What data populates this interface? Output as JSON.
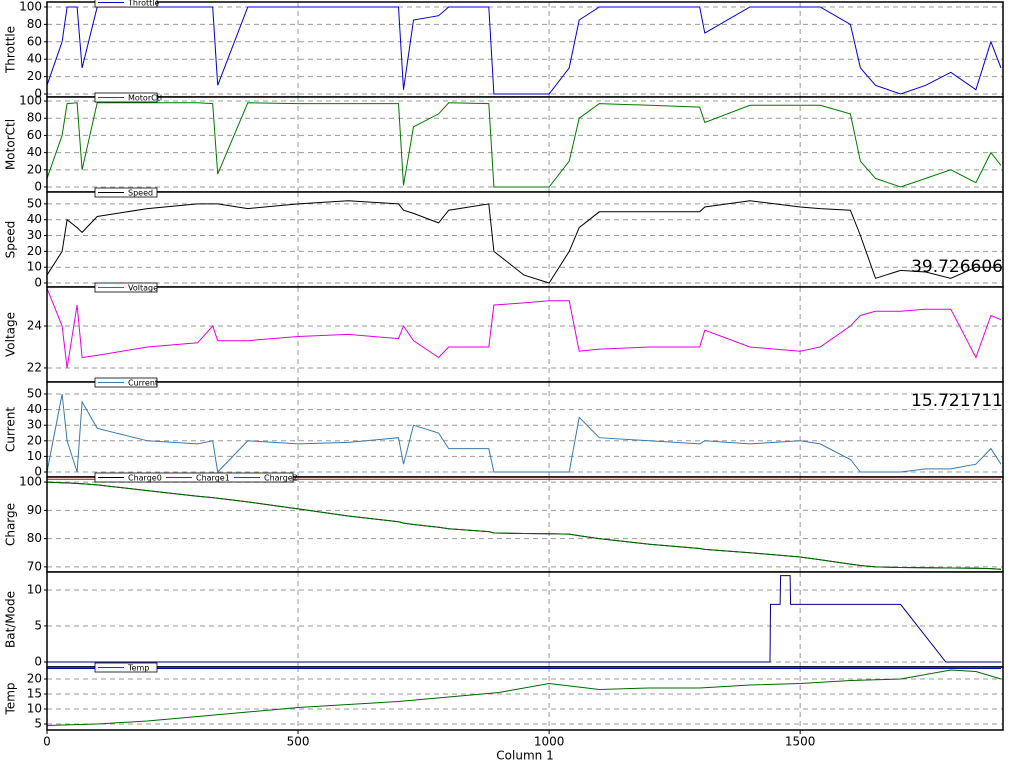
{
  "chart_data": [
    {
      "type": "line",
      "ylabel": "Throttle",
      "xlim": [
        0,
        1904
      ],
      "ylim": [
        -3.4,
        105.7
      ],
      "yticks": [
        0,
        20,
        40,
        60,
        80,
        100
      ],
      "grid": true,
      "x": [
        0,
        30,
        40,
        60,
        70,
        100,
        200,
        300,
        330,
        340,
        400,
        500,
        600,
        700,
        710,
        730,
        780,
        800,
        880,
        890,
        950,
        1000,
        1040,
        1060,
        1100,
        1200,
        1300,
        1310,
        1400,
        1500,
        1540,
        1600,
        1620,
        1650,
        1700,
        1750,
        1800,
        1850,
        1880,
        1900
      ],
      "series": [
        {
          "name": "Throttle",
          "color": "#0000cc",
          "values": [
            10,
            60,
            100,
            100,
            30,
            100,
            100,
            100,
            100,
            10,
            100,
            100,
            100,
            100,
            5,
            85,
            90,
            100,
            100,
            0,
            0,
            0,
            30,
            85,
            100,
            100,
            100,
            70,
            100,
            100,
            100,
            80,
            30,
            10,
            0,
            10,
            25,
            5,
            60,
            30
          ]
        }
      ]
    },
    {
      "type": "line",
      "ylabel": "MotorCtl",
      "xlim": [
        0,
        1904
      ],
      "ylim": [
        -5.8,
        104.7
      ],
      "yticks": [
        0,
        20,
        40,
        60,
        80,
        100
      ],
      "grid": true,
      "x": [
        0,
        30,
        40,
        60,
        70,
        100,
        200,
        300,
        330,
        340,
        400,
        500,
        600,
        700,
        710,
        730,
        780,
        800,
        880,
        890,
        950,
        1000,
        1040,
        1060,
        1100,
        1200,
        1300,
        1310,
        1400,
        1500,
        1540,
        1600,
        1620,
        1650,
        1700,
        1750,
        1800,
        1850,
        1880,
        1900
      ],
      "series": [
        {
          "name": "MotorCtl",
          "color": "#007700",
          "values": [
            10,
            60,
            97,
            98,
            20,
            98,
            98,
            98,
            97,
            15,
            98,
            97,
            97,
            97,
            2,
            70,
            85,
            98,
            97,
            0,
            0,
            0,
            30,
            80,
            97,
            95,
            93,
            75,
            95,
            95,
            95,
            85,
            30,
            10,
            0,
            10,
            20,
            5,
            40,
            25
          ]
        }
      ]
    },
    {
      "type": "line",
      "ylabel": "Speed",
      "annotation": "39.726606",
      "xlim": [
        0,
        1904
      ],
      "ylim": [
        -2.5,
        57.5
      ],
      "yticks": [
        0,
        10,
        20,
        30,
        40,
        50
      ],
      "grid": true,
      "x": [
        0,
        30,
        40,
        60,
        70,
        100,
        200,
        300,
        330,
        340,
        400,
        500,
        600,
        700,
        710,
        730,
        780,
        800,
        880,
        890,
        950,
        1000,
        1040,
        1060,
        1100,
        1200,
        1300,
        1310,
        1400,
        1500,
        1540,
        1600,
        1620,
        1650,
        1700,
        1750,
        1800,
        1850,
        1880,
        1900
      ],
      "series": [
        {
          "name": "Speed",
          "color": "#000000",
          "values": [
            5,
            20,
            40,
            35,
            32,
            42,
            47,
            50,
            50,
            50,
            47,
            50,
            52,
            50,
            46,
            44,
            38,
            46,
            50,
            20,
            5,
            0,
            20,
            35,
            45,
            45,
            45,
            48,
            52,
            48,
            47,
            46,
            30,
            3,
            8,
            7,
            3,
            10,
            10,
            10
          ]
        }
      ]
    },
    {
      "type": "line",
      "ylabel": "Voltage",
      "xlim": [
        0,
        1904
      ],
      "ylim": [
        21.33,
        25.86
      ],
      "yticks": [
        22,
        24
      ],
      "grid": true,
      "x": [
        0,
        30,
        40,
        60,
        70,
        100,
        200,
        300,
        330,
        340,
        400,
        500,
        600,
        700,
        710,
        730,
        780,
        800,
        880,
        890,
        950,
        1000,
        1040,
        1060,
        1100,
        1200,
        1300,
        1310,
        1400,
        1500,
        1540,
        1600,
        1620,
        1650,
        1700,
        1750,
        1800,
        1850,
        1880,
        1900
      ],
      "series": [
        {
          "name": "Voltage",
          "color": "#e000e0",
          "values": [
            25.8,
            24,
            22,
            25,
            22.5,
            22.6,
            23,
            23.2,
            24,
            23.3,
            23.3,
            23.5,
            23.6,
            23.4,
            24,
            23.3,
            22.5,
            23,
            23,
            25,
            25.1,
            25.2,
            25.2,
            22.8,
            22.9,
            23,
            23,
            23.8,
            23,
            22.8,
            23,
            24,
            24.5,
            24.7,
            24.7,
            24.8,
            24.8,
            22.5,
            24.5,
            24.3
          ]
        }
      ]
    },
    {
      "type": "line",
      "ylabel": "Current",
      "annotation": "15.721711",
      "xlim": [
        0,
        1904
      ],
      "ylim": [
        -3.2,
        57.7
      ],
      "yticks": [
        0,
        10,
        20,
        30,
        40,
        50
      ],
      "grid": true,
      "x": [
        0,
        30,
        40,
        60,
        70,
        100,
        200,
        300,
        330,
        340,
        400,
        500,
        600,
        700,
        710,
        730,
        780,
        800,
        880,
        890,
        950,
        1000,
        1040,
        1060,
        1100,
        1200,
        1300,
        1310,
        1400,
        1500,
        1540,
        1600,
        1620,
        1650,
        1700,
        1750,
        1800,
        1850,
        1880,
        1900
      ],
      "series": [
        {
          "name": "Current",
          "color": "#3a78a8",
          "values": [
            0,
            50,
            20,
            0,
            45,
            28,
            20,
            18,
            20,
            0,
            20,
            18,
            19,
            22,
            5,
            30,
            25,
            15,
            15,
            0,
            0,
            0,
            0,
            35,
            22,
            20,
            18,
            20,
            18,
            20,
            18,
            8,
            0,
            0,
            0,
            2,
            2,
            5,
            15,
            5
          ]
        }
      ]
    },
    {
      "type": "line",
      "ylabel": "Charge",
      "xlim": [
        0,
        1904
      ],
      "ylim": [
        68.2,
        101.8
      ],
      "yticks": [
        70,
        80,
        90,
        100
      ],
      "grid": true,
      "x": [
        0,
        30,
        40,
        60,
        70,
        100,
        200,
        300,
        330,
        340,
        400,
        500,
        600,
        700,
        710,
        730,
        780,
        800,
        880,
        890,
        950,
        1000,
        1040,
        1060,
        1100,
        1200,
        1300,
        1310,
        1400,
        1500,
        1540,
        1600,
        1620,
        1650,
        1700,
        1750,
        1800,
        1850,
        1880,
        1900
      ],
      "series": [
        {
          "name": "Charge0",
          "color": "#000000",
          "values": [
            100,
            99.8,
            99.7,
            99.5,
            99.4,
            99,
            97,
            95,
            94.5,
            94.3,
            93,
            90.5,
            88,
            86,
            85.5,
            85,
            84,
            83.5,
            82.5,
            82,
            81.8,
            81.7,
            81.6,
            81,
            80,
            78,
            76.5,
            76.2,
            75,
            73.5,
            72.5,
            71,
            70.5,
            70,
            69.8,
            69.7,
            69.6,
            69.5,
            69.4,
            69.2
          ]
        },
        {
          "name": "Charge1",
          "color": "#006600",
          "values": [
            100,
            99.8,
            99.7,
            99.5,
            99.4,
            99,
            97,
            95,
            94.5,
            94.3,
            93,
            90.5,
            88,
            86,
            85.5,
            85,
            84,
            83.5,
            82.5,
            82,
            81.8,
            81.7,
            81.6,
            81,
            80,
            78,
            76.5,
            76.2,
            75,
            73.5,
            72.5,
            71,
            70.5,
            70,
            69.8,
            69.7,
            69.6,
            69.5,
            69.4,
            69.2
          ]
        },
        {
          "name": "Charge2",
          "color": "#cc0000",
          "values": [
            101,
            101,
            101,
            101,
            101,
            101,
            101,
            101,
            101,
            101,
            101,
            101,
            101,
            101,
            101,
            101,
            101,
            101,
            101,
            101,
            101,
            101,
            101,
            101,
            101,
            101,
            101,
            101,
            101,
            101,
            101,
            101,
            101,
            101,
            101,
            101,
            101,
            101,
            101,
            101
          ]
        }
      ]
    },
    {
      "type": "line",
      "ylabel": "Bat/Mode",
      "xlim": [
        0,
        1904
      ],
      "ylim": [
        -0.7,
        12.5
      ],
      "yticks": [
        0,
        5,
        10
      ],
      "grid": true,
      "x": [
        0,
        1440,
        1441,
        1460,
        1461,
        1480,
        1481,
        1700,
        1790,
        1900
      ],
      "series": [
        {
          "color": "#00007f",
          "values": [
            0,
            0,
            8,
            8,
            12,
            12,
            8,
            8,
            0,
            0
          ]
        }
      ]
    },
    {
      "type": "line",
      "ylabel": "Temp",
      "xlabel": "Column 1",
      "xlim": [
        0,
        1904
      ],
      "xticks": [
        0,
        500,
        1000,
        1500
      ],
      "ylim": [
        3.0,
        24
      ],
      "yticks": [
        5,
        10,
        15,
        20
      ],
      "grid": true,
      "x": [
        0,
        100,
        200,
        300,
        400,
        500,
        600,
        700,
        800,
        900,
        1000,
        1050,
        1100,
        1200,
        1300,
        1400,
        1500,
        1600,
        1700,
        1800,
        1850,
        1900
      ],
      "series": [
        {
          "name": "Temp",
          "color": "#006600",
          "values": [
            4.5,
            5,
            6,
            7.5,
            9,
            10.5,
            11.5,
            12.5,
            14,
            15.5,
            18.5,
            17.5,
            16.5,
            17,
            17,
            18,
            18.5,
            19.5,
            20,
            23,
            22.5,
            20
          ]
        },
        {
          "color": "#0000cc",
          "values": [
            23.5,
            23.5,
            23.5,
            23.5,
            23.5,
            23.5,
            23.5,
            23.5,
            23.5,
            23.5,
            23.5,
            23.5,
            23.5,
            23.5,
            23.5,
            23.5,
            23.5,
            23.5,
            23.5,
            23.5,
            23.5,
            23.5
          ]
        }
      ]
    }
  ]
}
